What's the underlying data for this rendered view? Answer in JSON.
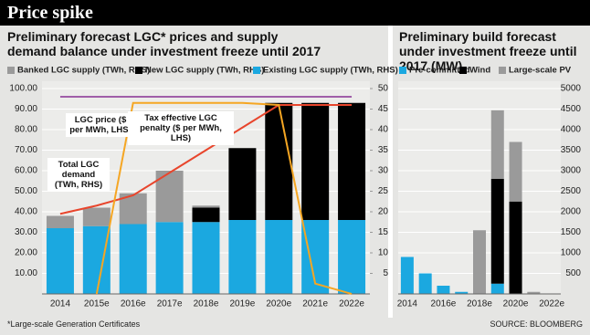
{
  "header": {
    "title": "Price spike"
  },
  "chart_data": [
    {
      "type": "bar",
      "stacked": true,
      "title": "Preliminary forecast LGC* prices and supply demand balance under investment freeze until 2017",
      "categories": [
        "2014",
        "2015e",
        "2016e",
        "2017e",
        "2018e",
        "2019e",
        "2020e",
        "2021e",
        "2022e"
      ],
      "series": [
        {
          "name": "Banked LGC supply (TWh, RHS)",
          "color": "#9a9a9a",
          "axis": "y2",
          "values": [
            3,
            4.5,
            7.5,
            12.5,
            0.5,
            0,
            0,
            0,
            0
          ]
        },
        {
          "name": "New LGC supply (TWh, RHS)",
          "color": "#000000",
          "axis": "y2",
          "values": [
            0,
            0,
            0,
            0,
            3.5,
            17.5,
            28.5,
            28.5,
            28.5
          ]
        },
        {
          "name": "Existing LGC supply (TWh, RHS)",
          "color": "#1ba8e0",
          "axis": "y2",
          "values": [
            16,
            16.5,
            17,
            17.5,
            17.5,
            18,
            18,
            18,
            18
          ]
        },
        {
          "name": "Total LGC demand (TWh, RHS)",
          "type": "line",
          "color": "#e8452c",
          "axis": "y2",
          "values": [
            19.5,
            21.5,
            24,
            29.5,
            35,
            40.5,
            46,
            46,
            46
          ]
        },
        {
          "name": "LGC price ($ per MWh, LHS)",
          "type": "line",
          "color": "#f5a623",
          "values": [
            null,
            0,
            93,
            93,
            93,
            93,
            92,
            5,
            0
          ]
        },
        {
          "name": "Tax effective LGC penalty ($ per MWh, LHS)",
          "type": "line",
          "color": "#a05ea8",
          "values": [
            96,
            96,
            96,
            96,
            96,
            96,
            96,
            96,
            96
          ]
        }
      ],
      "ylim": [
        0,
        100
      ],
      "yticks": [
        {
          "value": 10,
          "label": "10.00"
        },
        {
          "value": 20,
          "label": "20.00"
        },
        {
          "value": 30,
          "label": "30.00"
        },
        {
          "value": 40,
          "label": "40.00"
        },
        {
          "value": 50,
          "label": "50.00"
        },
        {
          "value": 60,
          "label": "60.00"
        },
        {
          "value": 70,
          "label": "70.00"
        },
        {
          "value": 80,
          "label": "80.00"
        },
        {
          "value": 90,
          "label": "90.00"
        },
        {
          "value": 100,
          "label": "100.00"
        }
      ],
      "y2lim": [
        0,
        50
      ],
      "y2ticks": [
        5,
        10,
        15,
        20,
        25,
        30,
        35,
        40,
        45,
        50
      ],
      "grid": true
    },
    {
      "type": "bar",
      "stacked": true,
      "title": "Preliminary build forecast under investment freeze until 2017 (MW)",
      "categories": [
        "2014",
        null,
        "2016e",
        null,
        "2018e",
        null,
        "2020e",
        null,
        "2022e"
      ],
      "series": [
        {
          "name": "Pre-committed",
          "color": "#1ba8e0",
          "values": [
            900,
            500,
            200,
            50,
            0,
            250,
            0,
            0,
            0
          ]
        },
        {
          "name": "Wind",
          "color": "#000000",
          "values": [
            0,
            0,
            0,
            0,
            0,
            2550,
            2250,
            0,
            0
          ]
        },
        {
          "name": "Large-scale PV",
          "color": "#9a9a9a",
          "values": [
            0,
            0,
            0,
            0,
            1550,
            1670,
            1450,
            50,
            0
          ]
        }
      ],
      "ylim": [
        0,
        5000
      ],
      "yticks": [
        500,
        1000,
        1500,
        2000,
        2500,
        3000,
        3500,
        4000,
        4500,
        5000
      ],
      "y_axis_side": "right",
      "grid": true
    }
  ],
  "footer": {
    "note": "*Large-scale Generation Certificates",
    "source": "SOURCE: BLOOMBERG"
  }
}
